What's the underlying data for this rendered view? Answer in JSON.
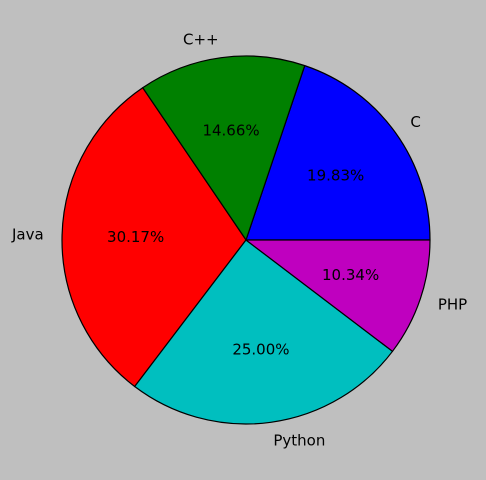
{
  "chart_data": {
    "type": "pie",
    "title": "",
    "start_angle_deg": 0,
    "direction": "counterclockwise",
    "background_color": "#bfbfbf",
    "slices": [
      {
        "label": "C",
        "value": 19.83,
        "percent_label": "19.83%",
        "color": "#0000ff"
      },
      {
        "label": "C++",
        "value": 14.66,
        "percent_label": "14.66%",
        "color": "#008000"
      },
      {
        "label": "Java",
        "value": 30.17,
        "percent_label": "30.17%",
        "color": "#ff0000"
      },
      {
        "label": "Python",
        "value": 25.0,
        "percent_label": "25.00%",
        "color": "#00bfbf"
      },
      {
        "label": "PHP",
        "value": 10.34,
        "percent_label": "10.34%",
        "color": "#bf00bf"
      }
    ]
  }
}
